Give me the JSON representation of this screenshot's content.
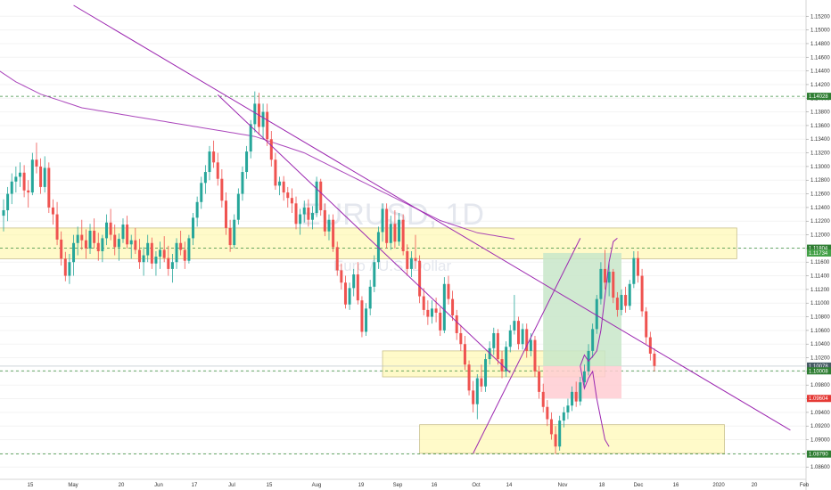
{
  "chart_data": {
    "type": "candlestick",
    "title": "",
    "watermark": {
      "symbol": "EURUSD, 1D",
      "description": "Euro / U.S. Dollar"
    },
    "ylim": [
      1.0842,
      1.1536
    ],
    "y_ticks": [
      "1.15200",
      "1.15000",
      "1.14800",
      "1.14600",
      "1.14400",
      "1.14200",
      "1.14000",
      "1.13800",
      "1.13600",
      "1.13400",
      "1.13200",
      "1.13000",
      "1.12800",
      "1.12600",
      "1.12400",
      "1.12200",
      "1.12000",
      "1.11800",
      "1.11600",
      "1.11400",
      "1.11200",
      "1.11000",
      "1.10800",
      "1.10600",
      "1.10400",
      "1.10200",
      "1.10000",
      "1.09800",
      "1.09600",
      "1.09400",
      "1.09200",
      "1.09000",
      "1.08800",
      "1.08600"
    ],
    "x_ticks": [
      "15",
      "May",
      "20",
      "Jun",
      "17",
      "Jul",
      "15",
      "Aug",
      "19",
      "Sep",
      "16",
      "Oct",
      "14",
      "Nov",
      "18",
      "Dec",
      "16",
      "2020",
      "20",
      "Feb"
    ],
    "price_labels": [
      {
        "value": 1.14028,
        "text": "1.14028",
        "color": "#2e7d32"
      },
      {
        "value": 1.11804,
        "text": "1.11804",
        "color": "#2e7d32"
      },
      {
        "value": 1.11734,
        "text": "1.11734",
        "color": "#43a047"
      },
      {
        "value": 1.10078,
        "text": "1.10078",
        "color": "#455a64"
      },
      {
        "value": 1.10008,
        "text": "1.10008",
        "color": "#2e7d32"
      },
      {
        "value": 1.09604,
        "text": "1.09604",
        "color": "#e53935"
      },
      {
        "value": 1.0879,
        "text": "1.08790",
        "color": "#2e7d32"
      }
    ],
    "horizontal_levels": [
      1.14028,
      1.11804,
      1.10008,
      1.0879
    ],
    "current_price": 1.10078,
    "zones": [
      {
        "name": "upper-supply-zone",
        "y1": 1.121,
        "y2": 1.1165,
        "x_start_bar": -2,
        "x_end_bar": 178
      },
      {
        "name": "mid-zone",
        "y1": 1.103,
        "y2": 1.0992,
        "x_start_bar": 92,
        "x_end_bar": 146
      },
      {
        "name": "lower-demand-zone",
        "y1": 1.0922,
        "y2": 1.088,
        "x_start_bar": 101,
        "x_end_bar": 175
      }
    ],
    "long_position": {
      "entry": 1.10078,
      "target": 1.11734,
      "stop": 1.09604,
      "x_start_bar": 131,
      "x_end_bar": 150
    },
    "colors": {
      "up": "#26a69a",
      "down": "#ef5350",
      "ma": "#9c27b0",
      "trend": "#9c27b0",
      "level": "#388e3c",
      "zone": "#fff59d",
      "profit": "#c8e6c9",
      "loss": "#ffcdd2"
    },
    "candles": [
      [
        1.1228,
        1.1252,
        1.1205,
        1.1236
      ],
      [
        1.1236,
        1.127,
        1.122,
        1.126
      ],
      [
        1.126,
        1.129,
        1.1245,
        1.1278
      ],
      [
        1.1278,
        1.13,
        1.1262,
        1.1285
      ],
      [
        1.1285,
        1.1306,
        1.127,
        1.1291
      ],
      [
        1.1291,
        1.1302,
        1.1255,
        1.1265
      ],
      [
        1.1265,
        1.128,
        1.124,
        1.1262
      ],
      [
        1.1262,
        1.132,
        1.1258,
        1.131
      ],
      [
        1.131,
        1.1335,
        1.129,
        1.13
      ],
      [
        1.13,
        1.1312,
        1.126,
        1.127
      ],
      [
        1.127,
        1.1315,
        1.1262,
        1.1298
      ],
      [
        1.1298,
        1.1306,
        1.1232,
        1.124
      ],
      [
        1.124,
        1.1252,
        1.1215,
        1.123
      ],
      [
        1.123,
        1.1248,
        1.1185,
        1.1193
      ],
      [
        1.1193,
        1.1205,
        1.1155,
        1.1165
      ],
      [
        1.1165,
        1.1175,
        1.1132,
        1.114
      ],
      [
        1.114,
        1.1172,
        1.1128,
        1.116
      ],
      [
        1.116,
        1.12,
        1.114,
        1.1188
      ],
      [
        1.1188,
        1.1212,
        1.117,
        1.12
      ],
      [
        1.12,
        1.1222,
        1.1178,
        1.1192
      ],
      [
        1.1192,
        1.1208,
        1.1165,
        1.118
      ],
      [
        1.118,
        1.1216,
        1.1172,
        1.1206
      ],
      [
        1.1206,
        1.1224,
        1.118,
        1.1188
      ],
      [
        1.1188,
        1.1203,
        1.1162,
        1.1176
      ],
      [
        1.1176,
        1.12,
        1.116,
        1.1195
      ],
      [
        1.1195,
        1.123,
        1.1185,
        1.1218
      ],
      [
        1.1218,
        1.1238,
        1.1192,
        1.12
      ],
      [
        1.12,
        1.1215,
        1.117,
        1.1182
      ],
      [
        1.1182,
        1.1202,
        1.1162,
        1.1194
      ],
      [
        1.1194,
        1.1224,
        1.1188,
        1.1215
      ],
      [
        1.1215,
        1.1228,
        1.118,
        1.1186
      ],
      [
        1.1186,
        1.12,
        1.1165,
        1.1192
      ],
      [
        1.1192,
        1.121,
        1.1172,
        1.1178
      ],
      [
        1.1178,
        1.1194,
        1.115,
        1.116
      ],
      [
        1.116,
        1.1182,
        1.114,
        1.117
      ],
      [
        1.117,
        1.12,
        1.116,
        1.1188
      ],
      [
        1.1188,
        1.1196,
        1.115,
        1.1158
      ],
      [
        1.1158,
        1.1176,
        1.114,
        1.1168
      ],
      [
        1.1168,
        1.119,
        1.115,
        1.1178
      ],
      [
        1.1178,
        1.1198,
        1.116,
        1.1166
      ],
      [
        1.1166,
        1.1184,
        1.114,
        1.115
      ],
      [
        1.115,
        1.1172,
        1.113,
        1.116
      ],
      [
        1.116,
        1.1195,
        1.115,
        1.1188
      ],
      [
        1.1188,
        1.1206,
        1.117,
        1.1178
      ],
      [
        1.1178,
        1.119,
        1.115,
        1.1162
      ],
      [
        1.1162,
        1.12,
        1.1158,
        1.1195
      ],
      [
        1.1195,
        1.1232,
        1.1185,
        1.1225
      ],
      [
        1.1225,
        1.1256,
        1.1212,
        1.1248
      ],
      [
        1.1248,
        1.1285,
        1.1238,
        1.1276
      ],
      [
        1.1276,
        1.1302,
        1.126,
        1.1292
      ],
      [
        1.1292,
        1.133,
        1.128,
        1.1322
      ],
      [
        1.1322,
        1.1338,
        1.1298,
        1.1306
      ],
      [
        1.1306,
        1.132,
        1.1272,
        1.1282
      ],
      [
        1.1282,
        1.1296,
        1.124,
        1.125
      ],
      [
        1.125,
        1.1262,
        1.12,
        1.121
      ],
      [
        1.121,
        1.1222,
        1.1175,
        1.1185
      ],
      [
        1.1185,
        1.123,
        1.118,
        1.1222
      ],
      [
        1.1222,
        1.1268,
        1.1215,
        1.126
      ],
      [
        1.126,
        1.13,
        1.125,
        1.1292
      ],
      [
        1.1292,
        1.133,
        1.1282,
        1.1322
      ],
      [
        1.1322,
        1.1368,
        1.1312,
        1.1362
      ],
      [
        1.1362,
        1.141,
        1.135,
        1.1392
      ],
      [
        1.1392,
        1.1408,
        1.1346,
        1.1358
      ],
      [
        1.1358,
        1.1392,
        1.134,
        1.138
      ],
      [
        1.138,
        1.1392,
        1.133,
        1.134
      ],
      [
        1.134,
        1.1352,
        1.13,
        1.131
      ],
      [
        1.131,
        1.132,
        1.1266,
        1.1272
      ],
      [
        1.1272,
        1.1285,
        1.1258,
        1.1278
      ],
      [
        1.1278,
        1.1286,
        1.125,
        1.1262
      ],
      [
        1.1262,
        1.127,
        1.124,
        1.1254
      ],
      [
        1.1254,
        1.1268,
        1.1232,
        1.1246
      ],
      [
        1.1246,
        1.1256,
        1.1208,
        1.1216
      ],
      [
        1.1216,
        1.1238,
        1.12,
        1.123
      ],
      [
        1.123,
        1.125,
        1.1218,
        1.124
      ],
      [
        1.124,
        1.1252,
        1.1212,
        1.1222
      ],
      [
        1.1222,
        1.1242,
        1.1208,
        1.1232
      ],
      [
        1.1232,
        1.1285,
        1.1226,
        1.1278
      ],
      [
        1.1278,
        1.1282,
        1.1228,
        1.1236
      ],
      [
        1.1236,
        1.1246,
        1.1198,
        1.1205
      ],
      [
        1.1205,
        1.123,
        1.1192,
        1.1222
      ],
      [
        1.1222,
        1.123,
        1.1175,
        1.1182
      ],
      [
        1.1182,
        1.119,
        1.114,
        1.1148
      ],
      [
        1.1148,
        1.1158,
        1.112,
        1.113
      ],
      [
        1.113,
        1.114,
        1.1092,
        1.1098
      ],
      [
        1.1098,
        1.113,
        1.109,
        1.1122
      ],
      [
        1.1122,
        1.115,
        1.111,
        1.1142
      ],
      [
        1.1142,
        1.116,
        1.1098,
        1.1104
      ],
      [
        1.1104,
        1.111,
        1.105,
        1.1058
      ],
      [
        1.1058,
        1.11,
        1.1052,
        1.1092
      ],
      [
        1.1092,
        1.1134,
        1.1082,
        1.1124
      ],
      [
        1.1124,
        1.117,
        1.1116,
        1.116
      ],
      [
        1.116,
        1.1212,
        1.115,
        1.1204
      ],
      [
        1.1204,
        1.1246,
        1.119,
        1.1238
      ],
      [
        1.1238,
        1.1246,
        1.118,
        1.1188
      ],
      [
        1.1188,
        1.1228,
        1.1178,
        1.1216
      ],
      [
        1.1216,
        1.1236,
        1.118,
        1.119
      ],
      [
        1.119,
        1.1232,
        1.1184,
        1.1222
      ],
      [
        1.1222,
        1.123,
        1.117,
        1.1176
      ],
      [
        1.1176,
        1.1186,
        1.114,
        1.115
      ],
      [
        1.115,
        1.1176,
        1.1138,
        1.1166
      ],
      [
        1.1166,
        1.12,
        1.115,
        1.1162
      ],
      [
        1.1162,
        1.117,
        1.11,
        1.111
      ],
      [
        1.111,
        1.1122,
        1.1082,
        1.109
      ],
      [
        1.109,
        1.1104,
        1.1068,
        1.108
      ],
      [
        1.108,
        1.1104,
        1.107,
        1.1092
      ],
      [
        1.1092,
        1.1108,
        1.1072,
        1.1086
      ],
      [
        1.1086,
        1.1094,
        1.1052,
        1.106
      ],
      [
        1.106,
        1.1138,
        1.1056,
        1.1128
      ],
      [
        1.1128,
        1.114,
        1.1098,
        1.1106
      ],
      [
        1.1106,
        1.1118,
        1.1074,
        1.1082
      ],
      [
        1.1082,
        1.109,
        1.1046,
        1.1056
      ],
      [
        1.1056,
        1.1068,
        1.103,
        1.104
      ],
      [
        1.104,
        1.1052,
        1.1002,
        1.101
      ],
      [
        1.101,
        1.1016,
        1.0965,
        1.0972
      ],
      [
        1.0972,
        1.0986,
        1.094,
        1.0952
      ],
      [
        1.0952,
        1.0996,
        1.093,
        1.099
      ],
      [
        1.099,
        1.101,
        1.097,
        1.0978
      ],
      [
        1.0978,
        1.1026,
        1.097,
        1.1018
      ],
      [
        1.1018,
        1.1044,
        1.101,
        1.1034
      ],
      [
        1.1034,
        1.1064,
        1.1024,
        1.1056
      ],
      [
        1.1056,
        1.1062,
        1.101,
        1.1018
      ],
      [
        1.1018,
        1.103,
        1.099,
        1.1
      ],
      [
        1.1,
        1.1044,
        1.0992,
        1.1036
      ],
      [
        1.1036,
        1.1068,
        1.1028,
        1.106
      ],
      [
        1.106,
        1.1112,
        1.1054,
        1.1074
      ],
      [
        1.1074,
        1.108,
        1.1032,
        1.104
      ],
      [
        1.104,
        1.107,
        1.1032,
        1.1062
      ],
      [
        1.1062,
        1.107,
        1.102,
        1.103
      ],
      [
        1.103,
        1.1056,
        1.1022,
        1.1046
      ],
      [
        1.1046,
        1.1052,
        1.0992,
        1.1
      ],
      [
        1.1,
        1.1008,
        1.096,
        1.097
      ],
      [
        1.097,
        1.0982,
        1.094,
        1.0948
      ],
      [
        1.0948,
        1.0958,
        1.092,
        1.093
      ],
      [
        1.093,
        1.094,
        1.09,
        1.0908
      ],
      [
        1.0908,
        1.092,
        1.0879,
        1.089
      ],
      [
        1.089,
        1.0935,
        1.0884,
        1.0928
      ],
      [
        1.0928,
        1.0948,
        1.0918,
        1.094
      ],
      [
        1.094,
        1.096,
        1.093,
        1.095
      ],
      [
        1.095,
        1.0978,
        1.0942,
        1.097
      ],
      [
        1.097,
        1.0985,
        1.0948,
        1.0956
      ],
      [
        1.0956,
        1.0992,
        1.095,
        1.0984
      ],
      [
        1.0984,
        1.101,
        1.0976,
        1.1
      ],
      [
        1.1,
        1.104,
        1.0994,
        1.103
      ],
      [
        1.103,
        1.107,
        1.102,
        1.1062
      ],
      [
        1.1062,
        1.1112,
        1.1055,
        1.1106
      ],
      [
        1.1106,
        1.116,
        1.1098,
        1.115
      ],
      [
        1.115,
        1.1178,
        1.112,
        1.113
      ],
      [
        1.113,
        1.116,
        1.111,
        1.1146
      ],
      [
        1.1146,
        1.115,
        1.11,
        1.1108
      ],
      [
        1.1108,
        1.1116,
        1.108,
        1.109
      ],
      [
        1.109,
        1.112,
        1.1082,
        1.1112
      ],
      [
        1.1112,
        1.1124,
        1.1086,
        1.1096
      ],
      [
        1.1096,
        1.1134,
        1.109,
        1.1128
      ],
      [
        1.1128,
        1.1176,
        1.1122,
        1.1166
      ],
      [
        1.1166,
        1.1176,
        1.113,
        1.114
      ],
      [
        1.114,
        1.115,
        1.108,
        1.1088
      ],
      [
        1.1088,
        1.1094,
        1.104,
        1.105
      ],
      [
        1.105,
        1.1058,
        1.1016,
        1.1026
      ],
      [
        1.1026,
        1.1034,
        1.1,
        1.1008
      ]
    ],
    "ma_200": [
      1.1475,
      1.147,
      1.1465,
      1.146,
      1.1455,
      1.145,
      1.1445,
      1.144,
      1.1436,
      1.1432,
      1.1428,
      1.1424,
      1.1421,
      1.1418,
      1.1415,
      1.1412,
      1.1409,
      1.1406,
      1.1404,
      1.1402,
      1.14,
      1.1398,
      1.1396,
      1.1394,
      1.1392,
      1.139,
      1.1388,
      1.1386,
      1.1385,
      1.1384,
      1.1383,
      1.1382,
      1.1381,
      1.138,
      1.1379,
      1.1378,
      1.1377,
      1.1376,
      1.1375,
      1.1374,
      1.1373,
      1.1372,
      1.1371,
      1.137,
      1.1369,
      1.1368,
      1.1367,
      1.1366,
      1.1365,
      1.1364,
      1.1363,
      1.1362,
      1.1361,
      1.136,
      1.1359,
      1.1358,
      1.1357,
      1.1356,
      1.1355,
      1.1354,
      1.1353,
      1.1352,
      1.1351,
      1.135,
      1.1349,
      1.1348,
      1.1347,
      1.1346,
      1.1345,
      1.1344,
      1.1342,
      1.134,
      1.1338,
      1.1336,
      1.1334,
      1.1332,
      1.133,
      1.1328,
      1.1326,
      1.1324,
      1.1322,
      1.132,
      1.1317,
      1.1314,
      1.1311,
      1.1308,
      1.1305,
      1.1302,
      1.1299,
      1.1296,
      1.1293,
      1.129,
      1.1287,
      1.1284,
      1.1281,
      1.1278,
      1.1275,
      1.1272,
      1.1269,
      1.1266,
      1.1263,
      1.126,
      1.1257,
      1.1254,
      1.1251,
      1.1248,
      1.1245,
      1.1242,
      1.1239,
      1.1236,
      1.1233,
      1.123,
      1.1227,
      1.1224,
      1.1221,
      1.1219,
      1.1217,
      1.1215,
      1.1213,
      1.1211,
      1.1209,
      1.1207,
      1.1205,
      1.1203,
      1.1202,
      1.1201,
      1.12,
      1.1199,
      1.1198,
      1.1197,
      1.1196,
      1.1195,
      1.1194
    ]
  }
}
